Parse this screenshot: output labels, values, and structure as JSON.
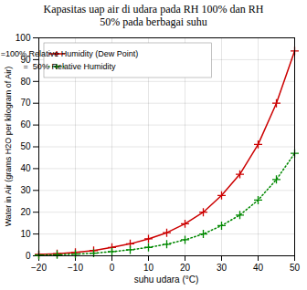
{
  "chart_data": {
    "type": "line",
    "title": "Kapasitas uap air di udara pada RH 100% dan RH\n50% pada berbagai suhu",
    "xlabel": "suhu udara (°C)",
    "ylabel": "Water in Air (grams H2O per kilogram of Air)",
    "x": [
      -20,
      -15,
      -10,
      -5,
      0,
      5,
      10,
      15,
      20,
      25,
      30,
      35,
      40,
      45,
      50
    ],
    "series": [
      {
        "name": "=100% Relative Humidity (Dew Point)",
        "color": "#cc0000",
        "marker": "plus",
        "line_style": "solid",
        "values": [
          0.64,
          0.96,
          1.6,
          2.4,
          3.84,
          5.5,
          7.76,
          10.6,
          14.7,
          20.0,
          27.7,
          37.4,
          51.1,
          70.0,
          94.0
        ]
      },
      {
        "name": "=  50% Relative Humidity",
        "color": "#008800",
        "marker": "plus",
        "line_style": "dotted",
        "values": [
          0.32,
          0.48,
          0.8,
          1.2,
          1.92,
          2.75,
          3.88,
          5.3,
          7.35,
          10.0,
          13.85,
          18.7,
          25.55,
          35.0,
          47.0
        ]
      }
    ],
    "xlim": [
      -20,
      50
    ],
    "ylim": [
      0,
      100
    ],
    "xticks": [
      -20,
      -10,
      0,
      10,
      20,
      30,
      40,
      50
    ],
    "yticks": [
      0,
      10,
      20,
      30,
      40,
      50,
      60,
      70,
      80,
      90,
      100
    ],
    "grid": true,
    "legend": "upper left"
  }
}
